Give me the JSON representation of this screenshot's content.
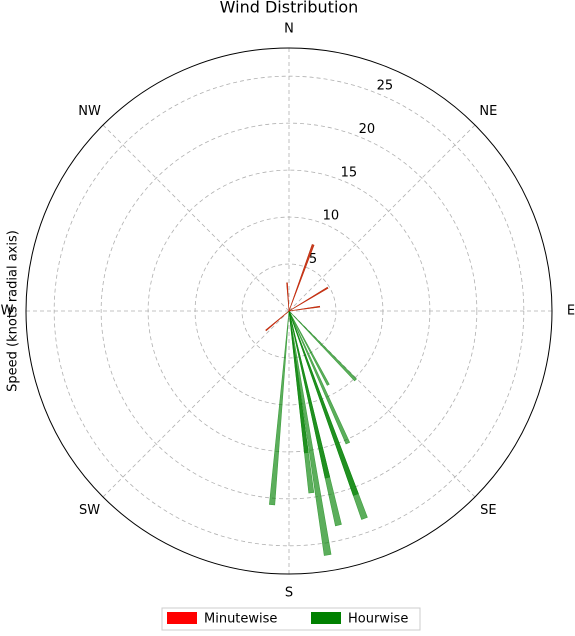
{
  "chart_data": {
    "type": "polar-bar",
    "title": "Wind Distribution",
    "ylabel": "Speed (knots radial axis)",
    "x": [
      171,
      160,
      167,
      160,
      156,
      185,
      173,
      167,
      173,
      152,
      136,
      20,
      59,
      82,
      230,
      356
    ],
    "series": [
      {
        "name": "Minutewise",
        "color": "#ff0000",
        "values": [
          null,
          null,
          null,
          null,
          null,
          null,
          null,
          null,
          null,
          null,
          null,
          7.5,
          4.8,
          3.3,
          3.2,
          3.0
        ]
      },
      {
        "name": "Hourwise",
        "color": "#008000",
        "values": [
          26.3,
          23.5,
          23.4,
          20.8,
          15.4,
          20.7,
          19.5,
          18.2,
          15.2,
          8.9,
          10.2,
          7.5,
          4.8,
          3.3,
          3.2,
          3.0
        ]
      }
    ],
    "xlim": [
      0,
      360
    ],
    "xticks": [
      {
        "value": 0,
        "label": "N"
      },
      {
        "value": 45,
        "label": "NE"
      },
      {
        "value": 90,
        "label": "E"
      },
      {
        "value": 135,
        "label": "SE"
      },
      {
        "value": 180,
        "label": "S"
      },
      {
        "value": 225,
        "label": "SW"
      },
      {
        "value": 270,
        "label": "W"
      },
      {
        "value": 315,
        "label": "NW"
      }
    ],
    "ylim": [
      0,
      28
    ],
    "yticks": [
      5,
      10,
      15,
      20,
      25
    ],
    "grid": true,
    "legend": "bottom"
  }
}
